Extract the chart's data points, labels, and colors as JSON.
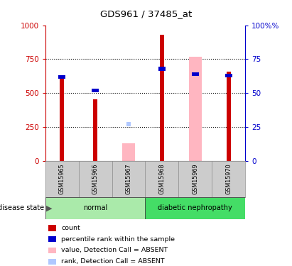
{
  "title": "GDS961 / 37485_at",
  "samples": [
    "GSM15965",
    "GSM15966",
    "GSM15967",
    "GSM15968",
    "GSM15969",
    "GSM15970"
  ],
  "bar_data": [
    {
      "sample": "GSM15965",
      "count": 620,
      "percentile": 62,
      "absent_value": null,
      "absent_rank": null
    },
    {
      "sample": "GSM15966",
      "count": 455,
      "percentile": 52,
      "absent_value": null,
      "absent_rank": null
    },
    {
      "sample": "GSM15967",
      "count": null,
      "percentile": null,
      "absent_value": 130,
      "absent_rank": 27
    },
    {
      "sample": "GSM15968",
      "count": 930,
      "percentile": 68,
      "absent_value": null,
      "absent_rank": null
    },
    {
      "sample": "GSM15969",
      "count": null,
      "percentile": 64,
      "absent_value": 770,
      "absent_rank": null
    },
    {
      "sample": "GSM15970",
      "count": 660,
      "percentile": 63,
      "absent_value": null,
      "absent_rank": null
    }
  ],
  "group_starts": [
    0,
    3
  ],
  "group_ends": [
    3,
    6
  ],
  "group_labels": [
    "normal",
    "diabetic nephropathy"
  ],
  "group_colors": [
    "#aaeaaa",
    "#44dd66"
  ],
  "ylim": [
    0,
    1000
  ],
  "y2lim": [
    0,
    100
  ],
  "yticks": [
    0,
    250,
    500,
    750,
    1000
  ],
  "y2ticks": [
    0,
    25,
    50,
    75,
    100
  ],
  "left_axis_color": "#cc0000",
  "right_axis_color": "#0000cc",
  "count_color": "#cc0000",
  "percentile_color": "#0000cc",
  "absent_value_color": "#ffb6c1",
  "absent_rank_color": "#b0c8ff",
  "disease_state_label": "disease state",
  "legend_items": [
    {
      "label": "count",
      "color": "#cc0000"
    },
    {
      "label": "percentile rank within the sample",
      "color": "#0000cc"
    },
    {
      "label": "value, Detection Call = ABSENT",
      "color": "#ffb6c1"
    },
    {
      "label": "rank, Detection Call = ABSENT",
      "color": "#b0c8ff"
    }
  ],
  "background_color": "#ffffff",
  "tick_area_bg": "#cccccc"
}
